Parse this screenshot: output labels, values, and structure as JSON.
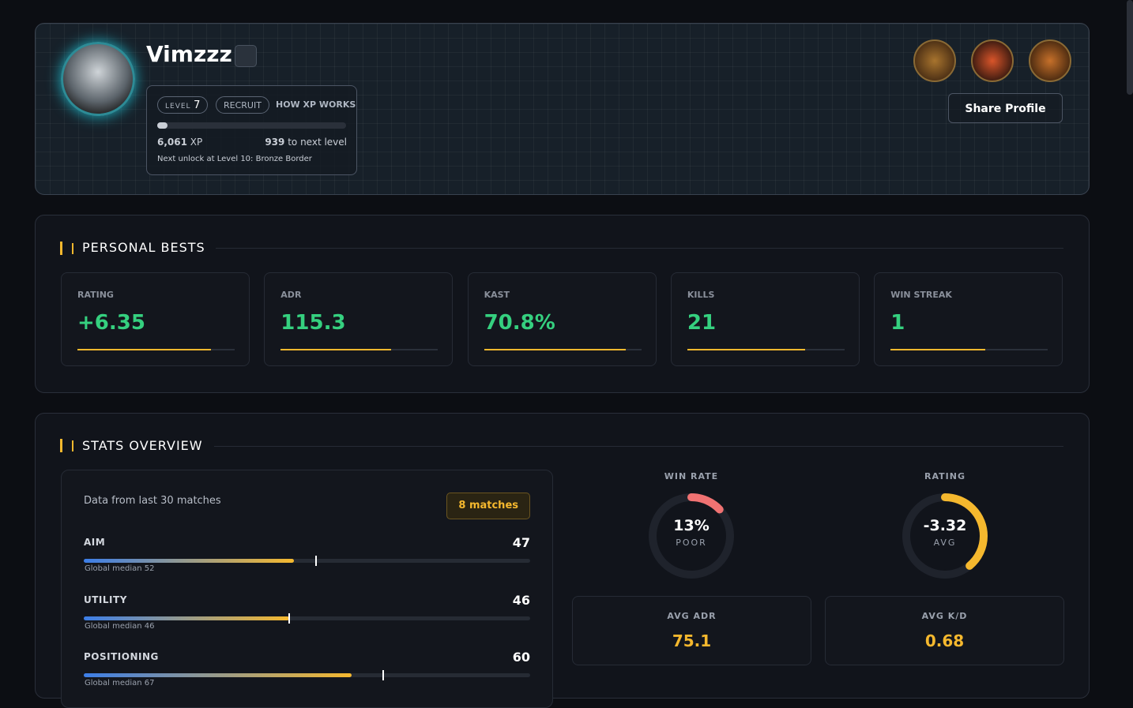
{
  "profile": {
    "name": "Vimzzz",
    "level_label": "LEVEL",
    "level": 7,
    "rank": "RECRUIT",
    "xp_link": "HOW XP WORKS",
    "xp": "6,061",
    "xp_unit": "XP",
    "to_next": 939,
    "to_next_label": "to next level",
    "next_unlock": "Next unlock at Level 10: Bronze Border",
    "share": "Share Profile"
  },
  "personal_bests": {
    "title": "PERSONAL BESTS",
    "items": [
      {
        "label": "RATING",
        "value": "+6.35"
      },
      {
        "label": "ADR",
        "value": "115.3"
      },
      {
        "label": "KAST",
        "value": "70.8%"
      },
      {
        "label": "KILLS",
        "value": 21
      },
      {
        "label": "WIN STREAK",
        "value": 1
      }
    ]
  },
  "stats_overview": {
    "title": "STATS OVERVIEW",
    "note": "Data from last 30 matches",
    "matches": "8 matches",
    "median_label": "Global median",
    "skills": [
      {
        "name": "AIM",
        "value": 47,
        "median": 52
      },
      {
        "name": "UTILITY",
        "value": 46,
        "median": 46
      },
      {
        "name": "POSITIONING",
        "value": 60,
        "median": 67
      }
    ],
    "win_rate": {
      "label": "WIN RATE",
      "value": 13,
      "value_label": "13%",
      "grade": "POOR"
    },
    "rating": {
      "label": "RATING",
      "value": "-3.32",
      "grade": "AVG"
    },
    "avg_adr": {
      "label": "AVG ADR",
      "value": "75.1"
    },
    "avg_kd": {
      "label": "AVG K/D",
      "value": "0.68"
    }
  }
}
